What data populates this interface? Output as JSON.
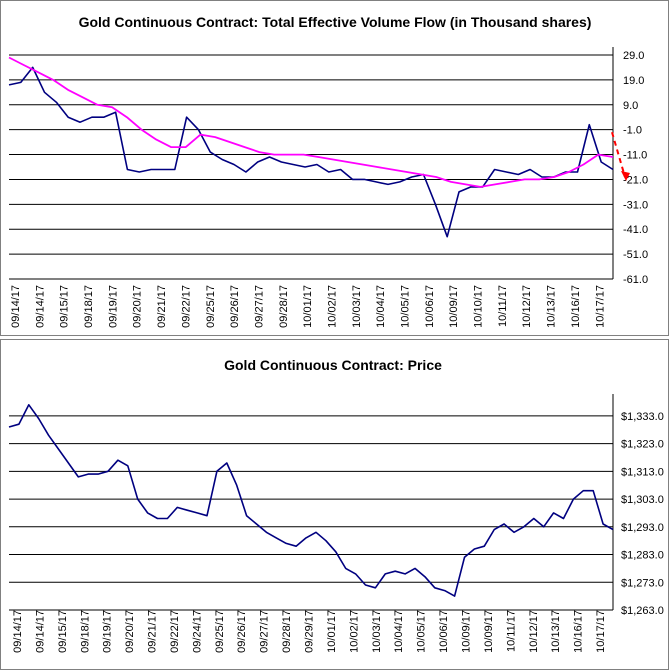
{
  "colors": {
    "series": "#000080",
    "moving_average": "#ff00ff",
    "projection": "#ff0000",
    "grid": "#000000"
  },
  "chart_data": [
    {
      "type": "line",
      "title": "Gold Continuous Contract: Total Effective Volume Flow (in Thousand shares)",
      "ylim": [
        -61,
        29
      ],
      "y_ticks": [
        "29.0",
        "19.0",
        "9.0",
        "-1.0",
        "-11.0",
        "-21.0",
        "-31.0",
        "-41.0",
        "-51.0",
        "-61.0"
      ],
      "y_tick_values": [
        29,
        19,
        9,
        -1,
        -11,
        -21,
        -31,
        -41,
        -51,
        -61
      ],
      "x_ticks": [
        "09/14/17",
        "09/14/17",
        "09/15/17",
        "09/18/17",
        "09/19/17",
        "09/20/17",
        "09/21/17",
        "09/22/17",
        "09/25/17",
        "09/26/17",
        "09/27/17",
        "09/28/17",
        "10/01/17",
        "10/02/17",
        "10/03/17",
        "10/04/17",
        "10/05/17",
        "10/06/17",
        "10/09/17",
        "10/10/17",
        "10/11/17",
        "10/12/17",
        "10/13/17",
        "10/16/17",
        "10/17/17"
      ],
      "grid": "horizontal",
      "series": [
        {
          "values": [
            17,
            18,
            24,
            14,
            10,
            4,
            2,
            4,
            4,
            6,
            -17,
            -18,
            -17,
            -17,
            -17,
            4,
            -1,
            -10,
            -13,
            -15,
            -18,
            -14,
            -12,
            -14,
            -15,
            -16,
            -15,
            -18,
            -17,
            -21,
            -21,
            -22,
            -23,
            -22,
            -20,
            -19,
            -31,
            -44,
            -26,
            -24,
            -24,
            -17,
            -18,
            -19,
            -17,
            -20,
            -20,
            -18,
            -18,
            1,
            -14,
            -17
          ]
        },
        {
          "values": [
            28,
            25,
            22,
            19,
            15,
            12,
            9,
            8,
            4,
            -1,
            -5,
            -8,
            -8,
            -3,
            -4,
            -6,
            -8,
            -10,
            -11,
            -11,
            -11,
            -12,
            -13,
            -14,
            -15,
            -16,
            -17,
            -18,
            -19,
            -20,
            -22,
            -23,
            -24,
            -23,
            -22,
            -21,
            -21,
            -20,
            -18,
            -15,
            -11,
            -12
          ]
        },
        {
          "values": [
            -2,
            -20
          ]
        }
      ]
    },
    {
      "type": "line",
      "title": "Gold Continuous Contract: Price",
      "ylim": [
        1263,
        1338
      ],
      "y_ticks": [
        "$1,333.0",
        "$1,323.0",
        "$1,313.0",
        "$1,303.0",
        "$1,293.0",
        "$1,283.0",
        "$1,273.0",
        "$1,263.0"
      ],
      "y_tick_values": [
        1333,
        1323,
        1313,
        1303,
        1293,
        1283,
        1273,
        1263
      ],
      "x_ticks": [
        "09/14/17",
        "09/14/17",
        "09/15/17",
        "09/18/17",
        "09/19/17",
        "09/20/17",
        "09/21/17",
        "09/22/17",
        "09/24/17",
        "09/25/17",
        "09/26/17",
        "09/27/17",
        "09/28/17",
        "09/29/17",
        "10/01/17",
        "10/02/17",
        "10/03/17",
        "10/04/17",
        "10/05/17",
        "10/06/17",
        "10/09/17",
        "10/09/17",
        "10/11/17",
        "10/12/17",
        "10/13/17",
        "10/16/17",
        "10/17/17"
      ],
      "grid": "horizontal",
      "series": [
        {
          "values": [
            1329,
            1330,
            1337,
            1332,
            1326,
            1321,
            1316,
            1311,
            1312,
            1312,
            1313,
            1317,
            1315,
            1303,
            1298,
            1296,
            1296,
            1300,
            1299,
            1298,
            1297,
            1313,
            1316,
            1308,
            1297,
            1294,
            1291,
            1289,
            1287,
            1286,
            1289,
            1291,
            1288,
            1284,
            1278,
            1276,
            1272,
            1271,
            1276,
            1277,
            1276,
            1278,
            1275,
            1271,
            1270,
            1268,
            1282,
            1285,
            1286,
            1292,
            1294,
            1291,
            1293,
            1296,
            1293,
            1298,
            1296,
            1303,
            1306,
            1306,
            1294,
            1292
          ]
        }
      ]
    }
  ]
}
